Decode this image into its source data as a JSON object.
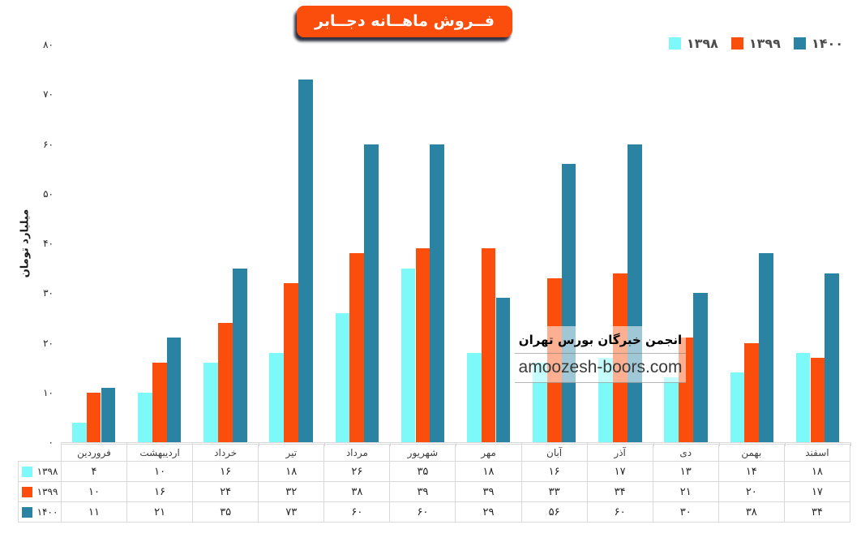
{
  "title": {
    "text": "فــروش ماهــانه دجــابر",
    "bg_color": "#FB4E0D",
    "text_color": "#FFFFFF"
  },
  "legend": {
    "items": [
      {
        "label": "۱۳۹۸",
        "color": "#7DF9F9"
      },
      {
        "label": "۱۳۹۹",
        "color": "#FB4E0D"
      },
      {
        "label": "۱۴۰۰",
        "color": "#2B83A3"
      }
    ]
  },
  "y_axis": {
    "title": "میلیارد تومان",
    "tick_labels": [
      "۰",
      "۱۰",
      "۲۰",
      "۳۰",
      "۴۰",
      "۵۰",
      "۶۰",
      "۷۰",
      "۸۰"
    ]
  },
  "watermark": {
    "line1": "انجمن خبرگان بورس تهران",
    "line2": "amoozesh-boors.com"
  },
  "chart_data": {
    "type": "bar",
    "title": "فــروش ماهــانه دجــابر",
    "categories": [
      "فروردین",
      "اردیبهشت",
      "خرداد",
      "تیر",
      "مرداد",
      "شهریور",
      "مهر",
      "آبان",
      "آذر",
      "دی",
      "بهمن",
      "اسفند"
    ],
    "series": [
      {
        "name": "۱۳۹۸",
        "color": "#7DF9F9",
        "values": [
          4,
          10,
          16,
          18,
          26,
          35,
          18,
          16,
          17,
          13,
          14,
          18
        ]
      },
      {
        "name": "۱۳۹۹",
        "color": "#FB4E0D",
        "values": [
          10,
          16,
          24,
          32,
          38,
          39,
          39,
          33,
          34,
          21,
          20,
          17
        ]
      },
      {
        "name": "۱۴۰۰",
        "color": "#2B83A3",
        "values": [
          11,
          21,
          35,
          73,
          60,
          60,
          29,
          56,
          60,
          30,
          38,
          34
        ]
      }
    ],
    "xlabel": "",
    "ylabel": "میلیارد تومان",
    "ylim": [
      0,
      80
    ],
    "y_step": 10,
    "grid": false,
    "legend_position": "top-right",
    "data_table_shown": true
  }
}
